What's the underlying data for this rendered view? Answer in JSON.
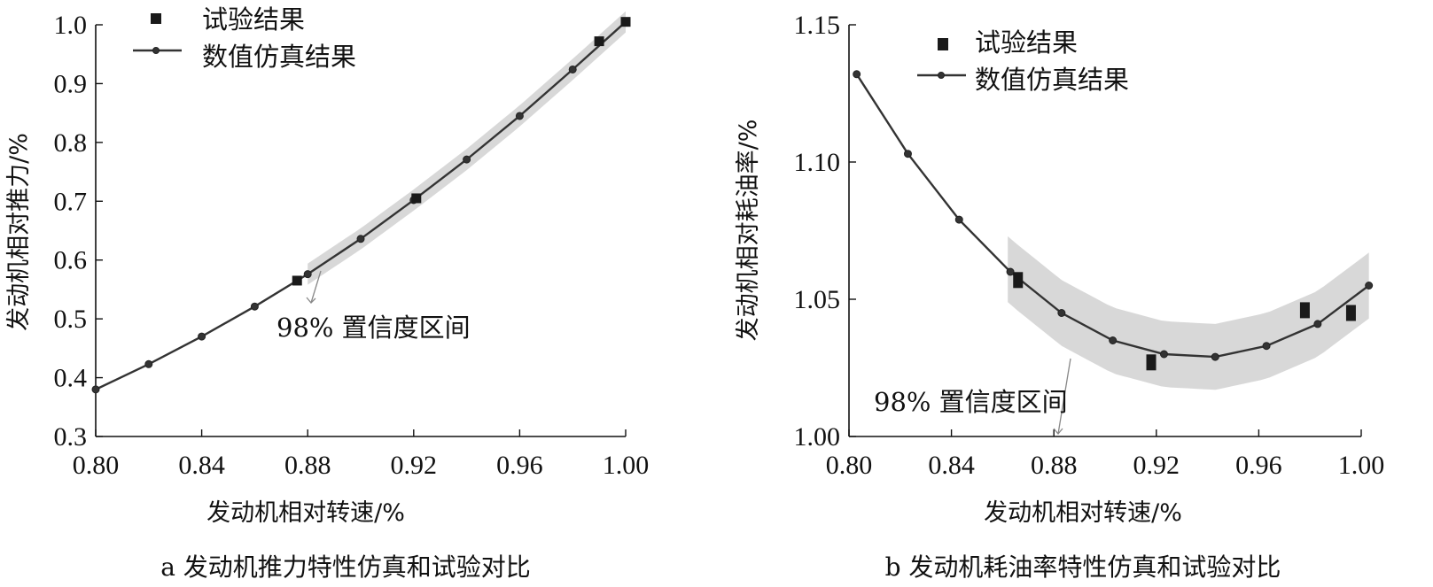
{
  "chart_data": [
    {
      "id": "a",
      "type": "line",
      "caption": "a 发动机推力特性仿真和试验对比",
      "xlabel": "发动机相对转速/%",
      "ylabel": "发动机相对推力/%",
      "xlim": [
        0.8,
        1.0
      ],
      "ylim": [
        0.3,
        1.0
      ],
      "xticks": [
        "0.80",
        "0.84",
        "0.88",
        "0.92",
        "0.96",
        "1.00"
      ],
      "yticks": [
        "0.3",
        "0.4",
        "0.5",
        "0.6",
        "0.7",
        "0.8",
        "0.9",
        "1.0"
      ],
      "legend": {
        "placement": "top-left",
        "experiment_label": "试验结果",
        "simulation_label": "数值仿真结果"
      },
      "annotation": "98% 置信度区间",
      "series": [
        {
          "name": "数值仿真结果",
          "x": [
            0.8,
            0.82,
            0.84,
            0.86,
            0.88,
            0.9,
            0.92,
            0.94,
            0.96,
            0.98,
            1.0
          ],
          "y": [
            0.38,
            0.423,
            0.47,
            0.521,
            0.576,
            0.636,
            0.702,
            0.771,
            0.845,
            0.924,
            1.005
          ]
        },
        {
          "name": "试验结果",
          "x": [
            0.876,
            0.921,
            0.99,
            1.0
          ],
          "y": [
            0.565,
            0.705,
            0.972,
            1.005
          ]
        }
      ],
      "confidence_band": {
        "x_start": 0.88,
        "x_end": 1.0,
        "half_width": 0.018
      }
    },
    {
      "id": "b",
      "type": "line",
      "caption": "b 发动机耗油率特性仿真和试验对比",
      "xlabel": "发动机相对转速/%",
      "ylabel": "发动机相对耗油率/%",
      "xlim": [
        0.8,
        1.0
      ],
      "ylim": [
        1.0,
        1.15
      ],
      "xticks": [
        "0.80",
        "0.84",
        "0.88",
        "0.92",
        "0.96",
        "1.00"
      ],
      "yticks": [
        "1.00",
        "1.05",
        "1.10",
        "1.15"
      ],
      "legend": {
        "placement": "top-center",
        "experiment_label": "试验结果",
        "simulation_label": "数值仿真结果"
      },
      "annotation": "98% 置信度区间",
      "series": [
        {
          "name": "数值仿真结果",
          "x": [
            0.803,
            0.823,
            0.843,
            0.863,
            0.883,
            0.903,
            0.923,
            0.943,
            0.963,
            0.983,
            1.003
          ],
          "y": [
            1.132,
            1.103,
            1.079,
            1.06,
            1.045,
            1.035,
            1.03,
            1.029,
            1.033,
            1.041,
            1.055
          ]
        },
        {
          "name": "试验结果",
          "x": [
            0.866,
            0.918,
            0.978,
            0.996
          ],
          "y": [
            1.057,
            1.027,
            1.046,
            1.045
          ]
        }
      ],
      "confidence_band": {
        "x_start": 0.862,
        "x_end": 1.003,
        "half_width": 0.012
      }
    }
  ]
}
